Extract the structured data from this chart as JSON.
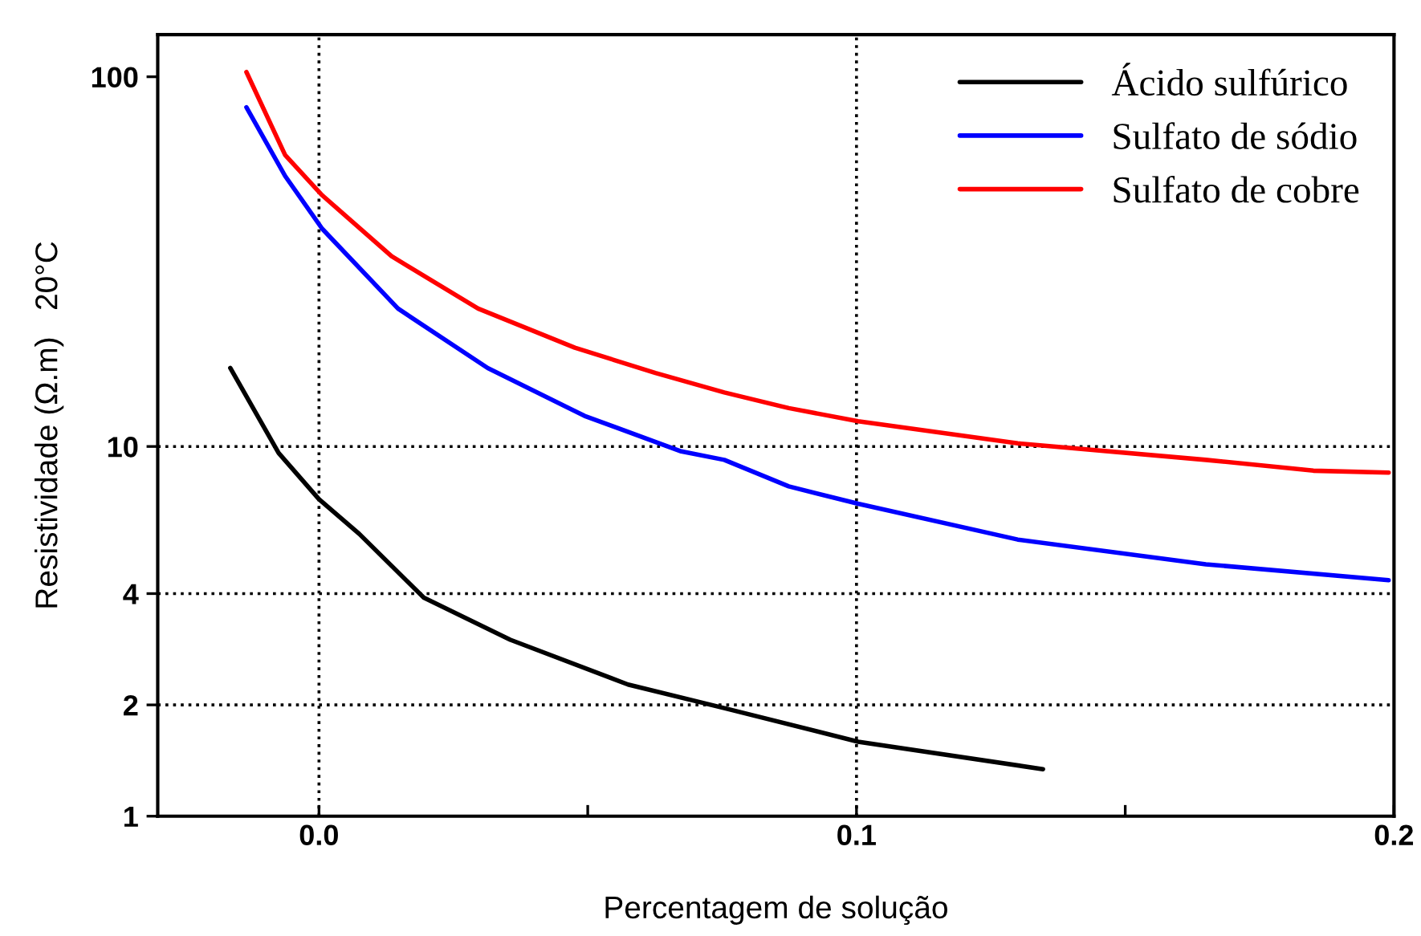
{
  "chart_data": {
    "type": "line",
    "xlabel": "Percentagem de solução",
    "ylabel": "Resistividade (Ω.m)   20°C",
    "log": "y",
    "xlim": [
      -0.03,
      0.2
    ],
    "ylim": [
      1,
      130
    ],
    "xticks": [
      {
        "value": 0.0,
        "label": "0.0"
      },
      {
        "value": 0.05,
        "label": null
      },
      {
        "value": 0.1,
        "label": "0.1"
      },
      {
        "value": 0.15,
        "label": null
      },
      {
        "value": 0.2,
        "label": "0.2"
      }
    ],
    "yticks": [
      1,
      2,
      4,
      10,
      100
    ],
    "grid": false,
    "legend": "top right",
    "line_style": "solid",
    "marker": "none",
    "ref_lines": [
      {
        "axis": "x",
        "value": 0.0,
        "line_style": "dotted",
        "color": "#000000"
      },
      {
        "axis": "x",
        "value": 0.1,
        "line_style": "dotted",
        "color": "#000000"
      },
      {
        "axis": "y",
        "value": 10,
        "line_style": "dotted",
        "color": "#000000"
      },
      {
        "axis": "y",
        "value": 4,
        "line_style": "dotted",
        "color": "#000000"
      },
      {
        "axis": "y",
        "value": 2,
        "line_style": "dotted",
        "color": "#000000"
      }
    ],
    "series": [
      {
        "name": "Ácido sulfúrico",
        "color": "#000000",
        "x": [
          -0.0165,
          -0.0075,
          0.0,
          0.0075,
          0.0195,
          0.0356,
          0.0575,
          0.0754,
          0.1003,
          0.1347
        ],
        "values": [
          16.3,
          9.6,
          7.2,
          5.8,
          3.9,
          3.0,
          2.27,
          1.96,
          1.59,
          1.34
        ]
      },
      {
        "name": "Sulfato de sódio",
        "color": "#0000ff",
        "x": [
          -0.0135,
          -0.0063,
          0.0006,
          0.0147,
          0.0314,
          0.0494,
          0.0674,
          0.0754,
          0.0874,
          0.1003,
          0.13,
          0.165,
          0.199
        ],
        "values": [
          82.7,
          53.9,
          38.8,
          23.6,
          16.3,
          12.1,
          9.7,
          9.2,
          7.8,
          7.0,
          5.6,
          4.8,
          4.35
        ]
      },
      {
        "name": "Sulfato de cobre",
        "color": "#ff0000",
        "x": [
          -0.0135,
          -0.0063,
          0.0006,
          0.0135,
          0.0296,
          0.0476,
          0.0626,
          0.0754,
          0.0874,
          0.1003,
          0.13,
          0.165,
          0.185,
          0.199
        ],
        "values": [
          103,
          61.4,
          47.8,
          32.7,
          23.6,
          18.5,
          15.8,
          14.0,
          12.7,
          11.7,
          10.2,
          9.2,
          8.6,
          8.5
        ]
      }
    ]
  }
}
